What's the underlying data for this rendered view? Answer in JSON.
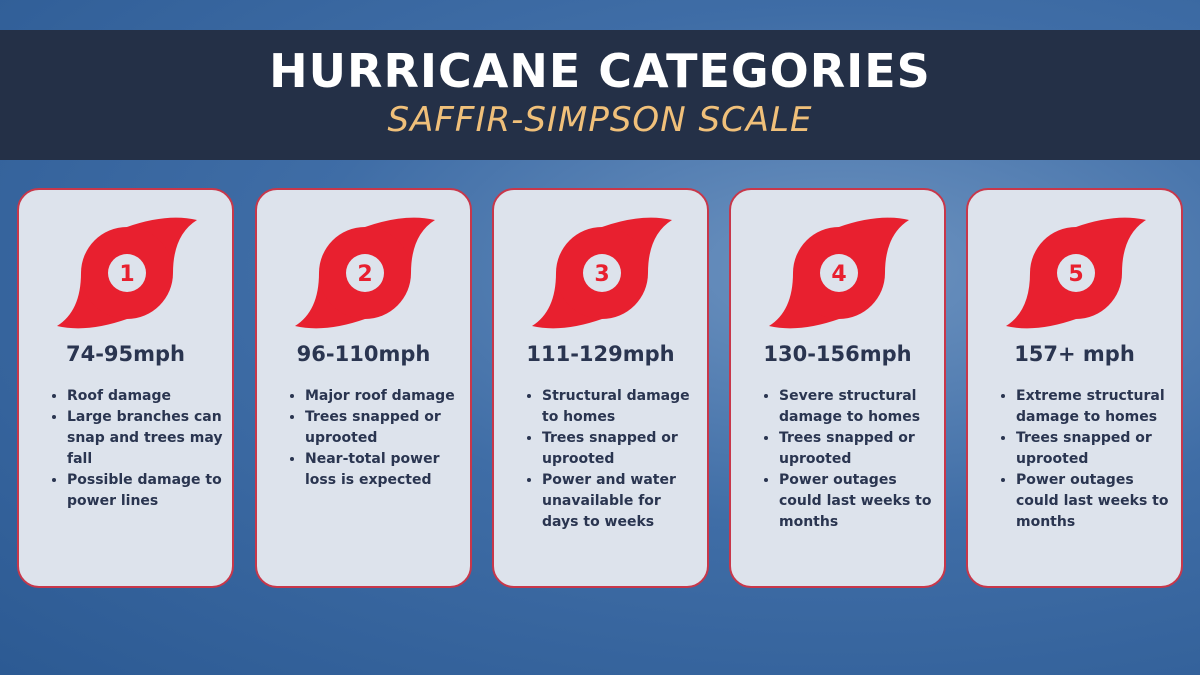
{
  "header": {
    "title": "HURRICANE CATEGORIES",
    "subtitle": "SAFFIR-SIMPSON SCALE"
  },
  "cards": [
    {
      "number": "1",
      "speed": "74-95mph",
      "items": [
        "Roof damage",
        "Large branches can snap and trees may fall",
        "Possible damage to power lines"
      ]
    },
    {
      "number": "2",
      "speed": "96-110mph",
      "items": [
        "Major roof damage",
        "Trees snapped or uprooted",
        "Near-total power loss is expected"
      ]
    },
    {
      "number": "3",
      "speed": "111-129mph",
      "items": [
        "Structural damage to homes",
        "Trees snapped or uprooted",
        "Power and water unavailable for days to weeks"
      ]
    },
    {
      "number": "4",
      "speed": "130-156mph",
      "items": [
        "Severe structural damage to homes",
        "Trees snapped or uprooted",
        "Power outages could last weeks to months"
      ]
    },
    {
      "number": "5",
      "speed": "157+ mph",
      "items": [
        "Extreme structural damage to homes",
        "Trees snapped or uprooted",
        "Power outages could last weeks to months"
      ]
    }
  ]
}
